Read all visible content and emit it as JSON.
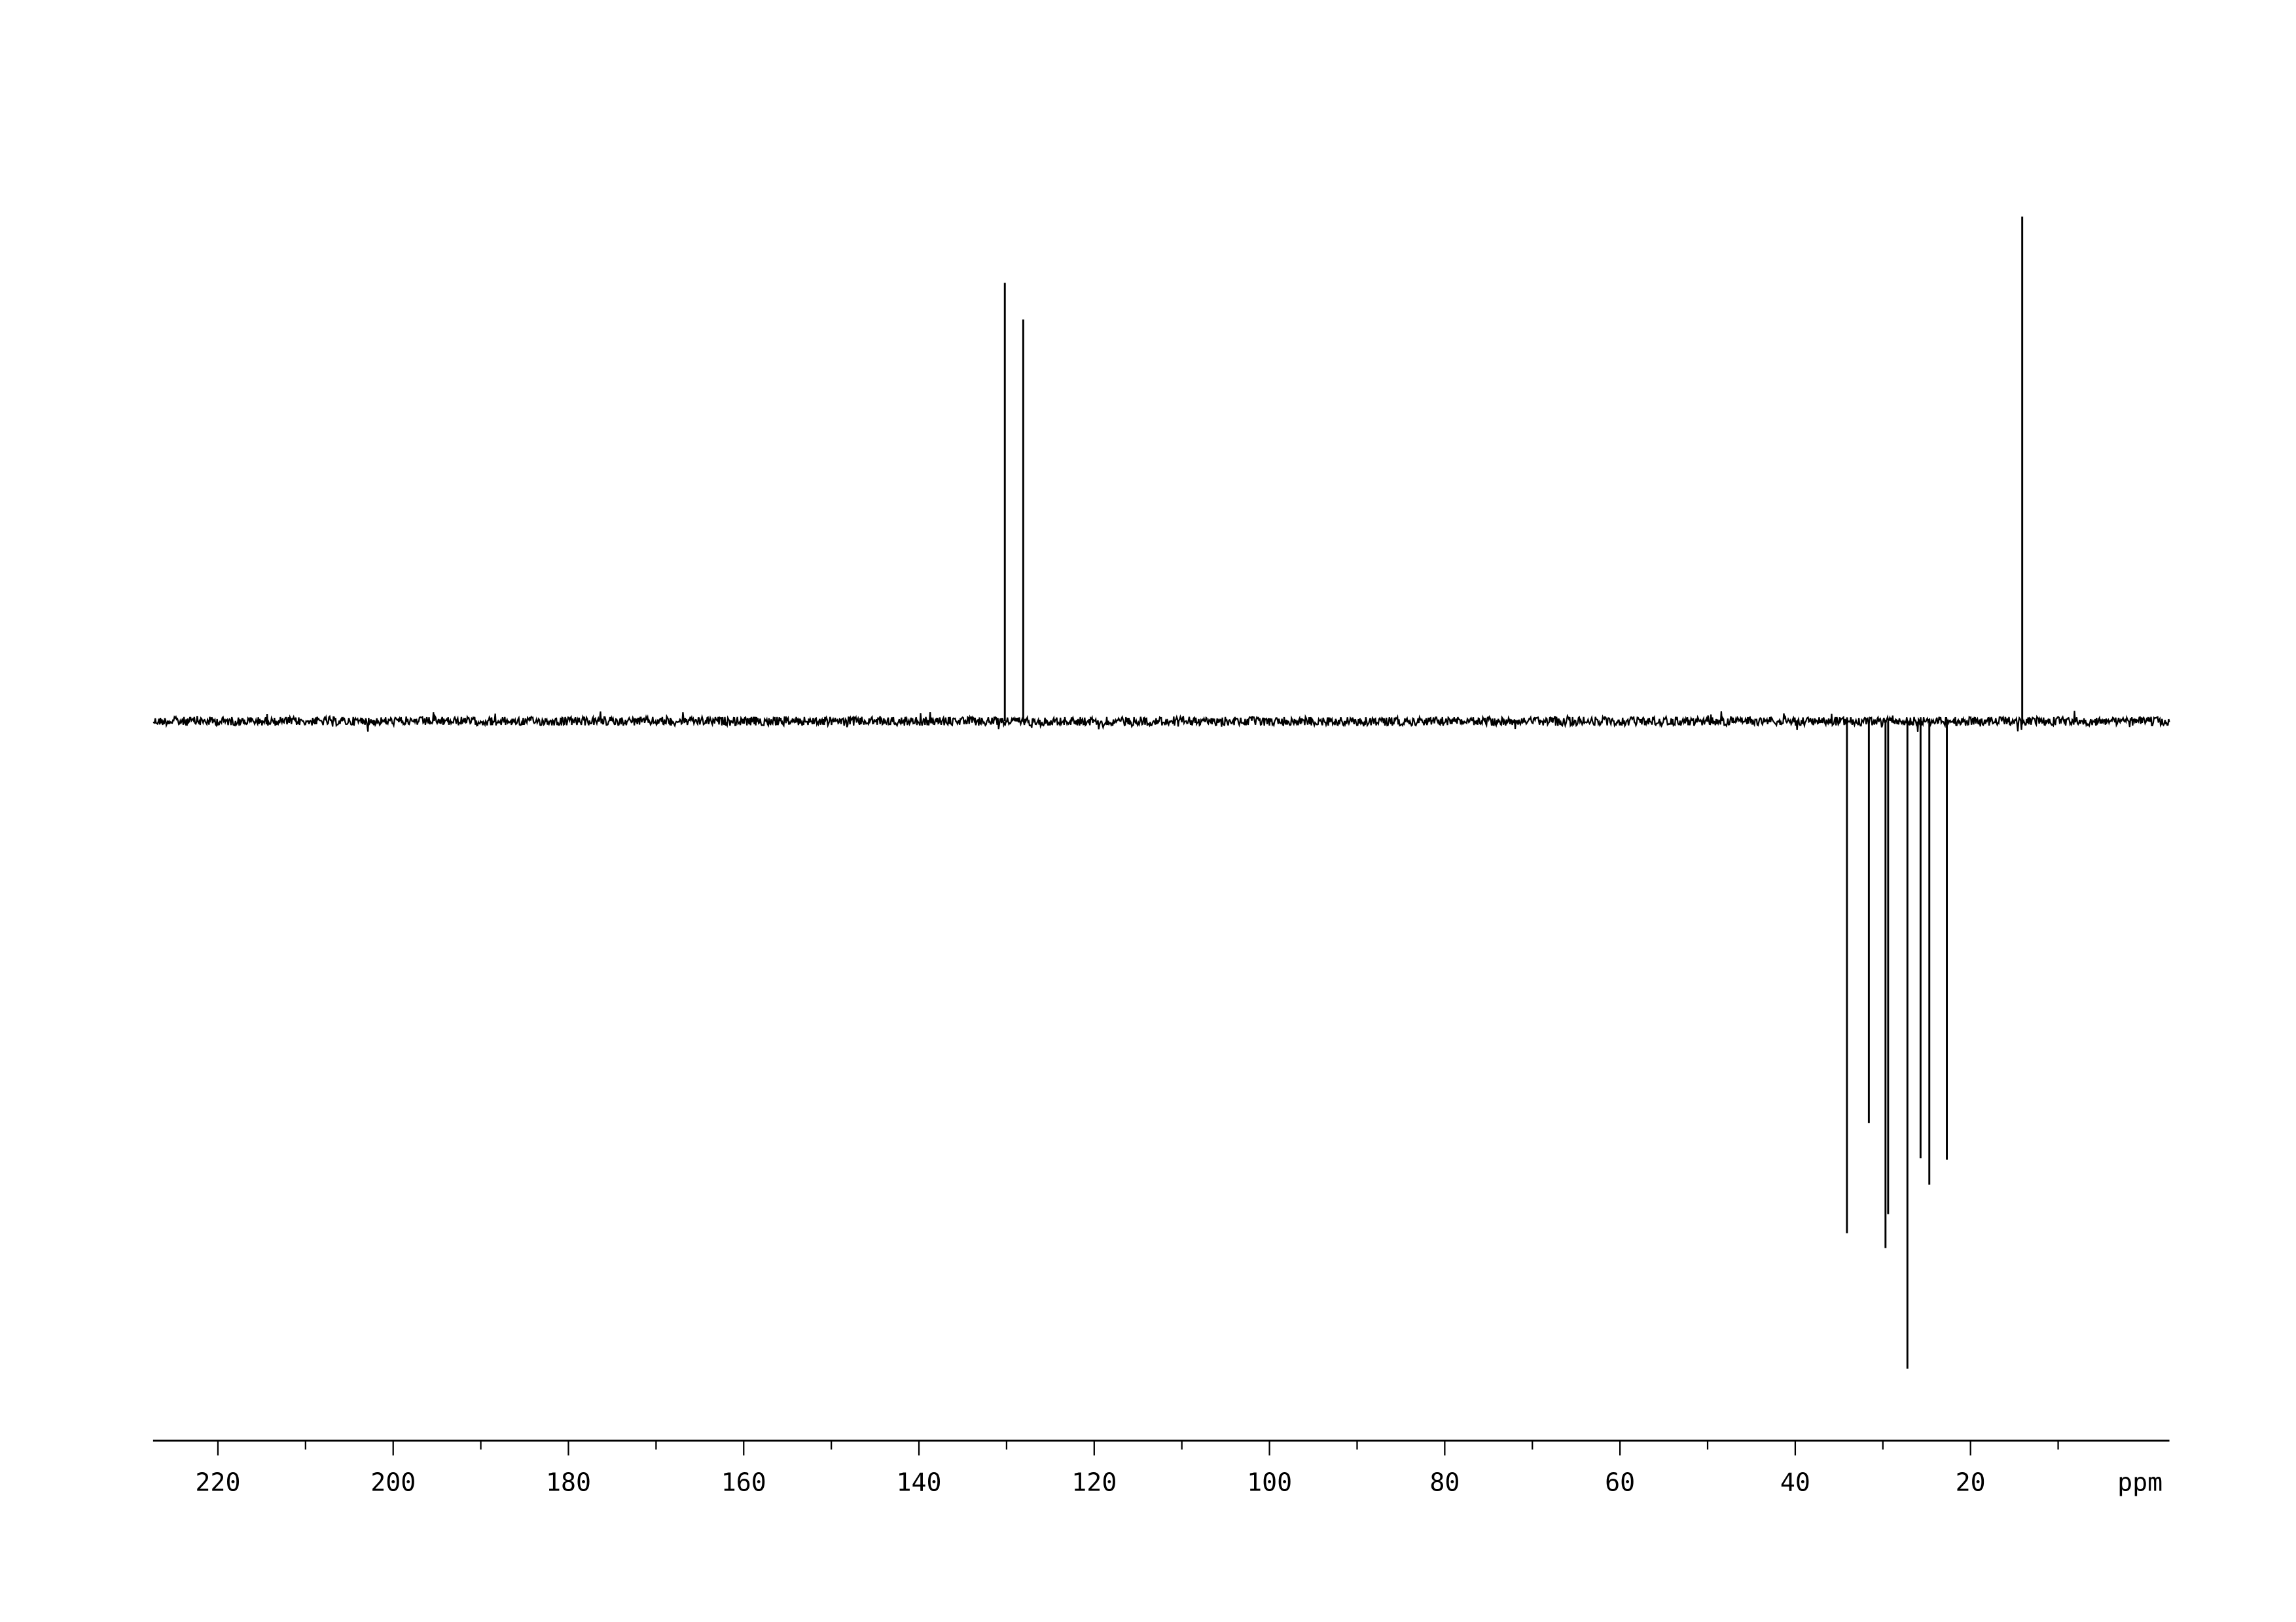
{
  "chart_data": {
    "type": "line",
    "xlabel": "ppm",
    "xlim": [
      227.4,
      -2.7
    ],
    "x_reversed": true,
    "grid": false,
    "legend": "none",
    "line_color": "#000000",
    "x_ticks": [
      "220",
      "200",
      "180",
      "160",
      "140",
      "120",
      "100",
      "80",
      "60",
      "40",
      "20"
    ],
    "x_tick_values": [
      220,
      200,
      180,
      160,
      140,
      120,
      100,
      80,
      60,
      40,
      20
    ],
    "peaks": [
      {
        "ppm": 130.2,
        "intensity": 298
      },
      {
        "ppm": 128.1,
        "intensity": 273
      },
      {
        "ppm": 14.1,
        "intensity": 343
      },
      {
        "ppm": 34.1,
        "intensity": -348
      },
      {
        "ppm": 31.6,
        "intensity": -273
      },
      {
        "ppm": 29.7,
        "intensity": -358
      },
      {
        "ppm": 29.4,
        "intensity": -335
      },
      {
        "ppm": 27.2,
        "intensity": -440
      },
      {
        "ppm": 25.7,
        "intensity": -297
      },
      {
        "ppm": 24.7,
        "intensity": -315
      },
      {
        "ppm": 22.7,
        "intensity": -298
      }
    ],
    "ylim": [
      -450,
      350
    ]
  }
}
